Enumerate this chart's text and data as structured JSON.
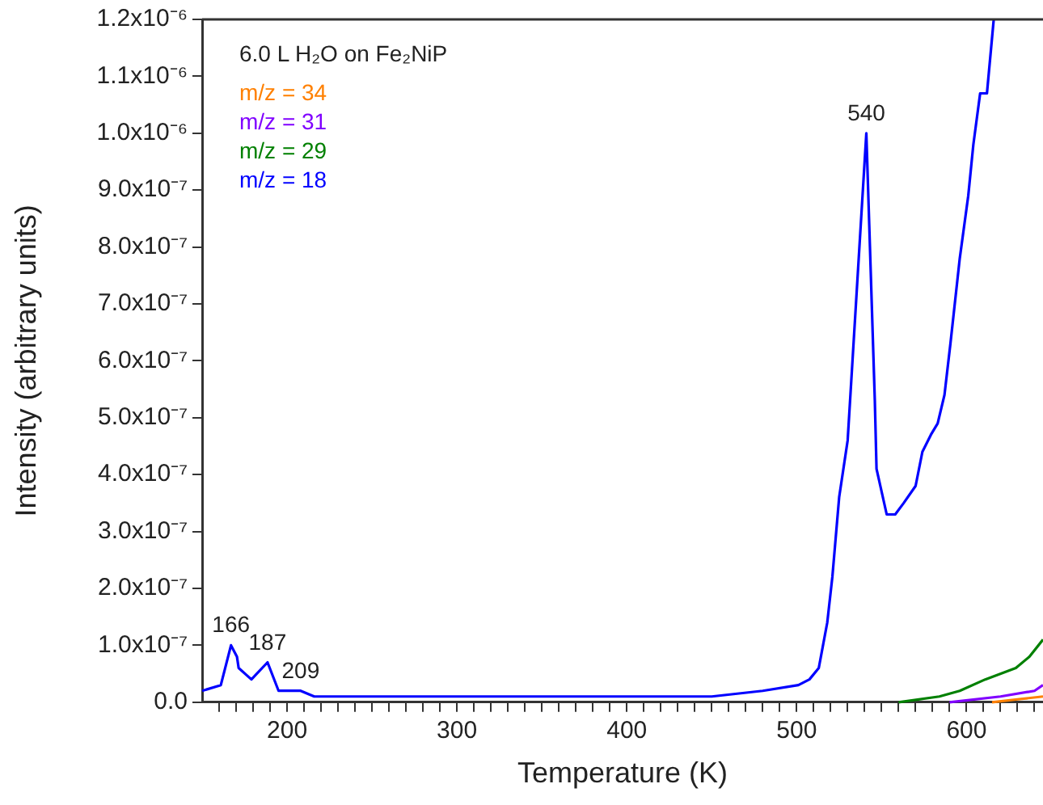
{
  "chart_data": {
    "type": "line",
    "title": "6.0 L H₂O on Fe₂NiP",
    "xlabel": "Temperature (K)",
    "ylabel": "Intensity (arbitrary units)",
    "xlim": [
      150,
      645
    ],
    "ylim": [
      0,
      1.2e-06
    ],
    "xticks": [
      {
        "value": 160,
        "label": null
      },
      {
        "value": 170,
        "label": null
      },
      {
        "value": 180,
        "label": null
      },
      {
        "value": 190,
        "label": null
      },
      200,
      {
        "value": 210,
        "label": null
      },
      {
        "value": 220,
        "label": null
      },
      {
        "value": 230,
        "label": null
      },
      {
        "value": 240,
        "label": null
      },
      {
        "value": 250,
        "label": null
      },
      {
        "value": 260,
        "label": null
      },
      {
        "value": 270,
        "label": null
      },
      {
        "value": 280,
        "label": null
      },
      {
        "value": 290,
        "label": null
      },
      300,
      {
        "value": 310,
        "label": null
      },
      {
        "value": 320,
        "label": null
      },
      {
        "value": 330,
        "label": null
      },
      {
        "value": 340,
        "label": null
      },
      {
        "value": 350,
        "label": null
      },
      {
        "value": 360,
        "label": null
      },
      {
        "value": 370,
        "label": null
      },
      {
        "value": 380,
        "label": null
      },
      {
        "value": 390,
        "label": null
      },
      400,
      {
        "value": 410,
        "label": null
      },
      {
        "value": 420,
        "label": null
      },
      {
        "value": 430,
        "label": null
      },
      {
        "value": 440,
        "label": null
      },
      {
        "value": 450,
        "label": null
      },
      {
        "value": 460,
        "label": null
      },
      {
        "value": 470,
        "label": null
      },
      {
        "value": 480,
        "label": null
      },
      {
        "value": 490,
        "label": null
      },
      500,
      {
        "value": 510,
        "label": null
      },
      {
        "value": 520,
        "label": null
      },
      {
        "value": 530,
        "label": null
      },
      {
        "value": 540,
        "label": null
      },
      {
        "value": 550,
        "label": null
      },
      {
        "value": 560,
        "label": null
      },
      {
        "value": 570,
        "label": null
      },
      {
        "value": 580,
        "label": null
      },
      {
        "value": 590,
        "label": null
      },
      600,
      {
        "value": 610,
        "label": null
      },
      {
        "value": 620,
        "label": null
      },
      {
        "value": 630,
        "label": null
      },
      {
        "value": 640,
        "label": null
      }
    ],
    "yticks": [
      {
        "value": 0,
        "label": "0.0"
      },
      {
        "value": 1e-07,
        "label": "1.0x10⁻⁷"
      },
      {
        "value": 2e-07,
        "label": "2.0x10⁻⁷"
      },
      {
        "value": 3e-07,
        "label": "3.0x10⁻⁷"
      },
      {
        "value": 4e-07,
        "label": "4.0x10⁻⁷"
      },
      {
        "value": 5e-07,
        "label": "5.0x10⁻⁷"
      },
      {
        "value": 6e-07,
        "label": "6.0x10⁻⁷"
      },
      {
        "value": 7e-07,
        "label": "7.0x10⁻⁷"
      },
      {
        "value": 8e-07,
        "label": "8.0x10⁻⁷"
      },
      {
        "value": 9e-07,
        "label": "9.0x10⁻⁷"
      },
      {
        "value": 1e-06,
        "label": "1.0x10⁻⁶"
      },
      {
        "value": 1.1e-06,
        "label": "1.1x10⁻⁶"
      },
      {
        "value": 1.2e-06,
        "label": "1.2x10⁻⁶"
      }
    ],
    "grid": false,
    "legend": "top left",
    "marker": "none",
    "line_style": "solid",
    "series": [
      {
        "name": "m/z = 34",
        "color": "#ff8000",
        "x": [
          615,
          630,
          645
        ],
        "values": [
          0,
          5e-09,
          1e-08
        ]
      },
      {
        "name": "m/z = 31",
        "color": "#8000ff",
        "x": [
          590,
          620,
          640,
          645
        ],
        "values": [
          0,
          1e-08,
          2e-08,
          3e-08
        ]
      },
      {
        "name": "m/z = 29",
        "color": "#008000",
        "x": [
          560,
          584,
          596,
          611,
          629,
          637,
          645
        ],
        "values": [
          0,
          1e-08,
          2e-08,
          4e-08,
          6e-08,
          8e-08,
          1.1e-07
        ]
      },
      {
        "name": "m/z = 18",
        "color": "#0000ff",
        "x": [
          150,
          161,
          167,
          170.5,
          171.5,
          179,
          188.5,
          195,
          201,
          208,
          216,
          250,
          300,
          400,
          450,
          480,
          501,
          507.5,
          513,
          518,
          521,
          525,
          530,
          541,
          546,
          547,
          553,
          558,
          563,
          570,
          574,
          579,
          583,
          587,
          590.5,
          596,
          601,
          604,
          608,
          612,
          616
        ],
        "values": [
          2e-08,
          3e-08,
          1e-07,
          8e-08,
          6e-08,
          4e-08,
          7e-08,
          2e-08,
          2e-08,
          2e-08,
          1e-08,
          1e-08,
          1e-08,
          1e-08,
          1e-08,
          2e-08,
          3e-08,
          4e-08,
          6e-08,
          1.4e-07,
          2.2e-07,
          3.6e-07,
          4.6e-07,
          1e-06,
          5.3e-07,
          4.1e-07,
          3.3e-07,
          3.3e-07,
          3.5e-07,
          3.8e-07,
          4.4e-07,
          4.7e-07,
          4.9e-07,
          5.4e-07,
          6.3e-07,
          7.8e-07,
          8.9e-07,
          9.8e-07,
          1.07e-06,
          1.07e-06,
          1.2e-06
        ]
      }
    ],
    "annotations": [
      {
        "text": "166",
        "x": 167,
        "y": 1e-07
      },
      {
        "text": "187",
        "x": 188.5,
        "y": 7e-08
      },
      {
        "text": "209",
        "x": 208,
        "y": 2e-08
      },
      {
        "text": "540",
        "x": 541,
        "y": 1e-06
      }
    ]
  }
}
